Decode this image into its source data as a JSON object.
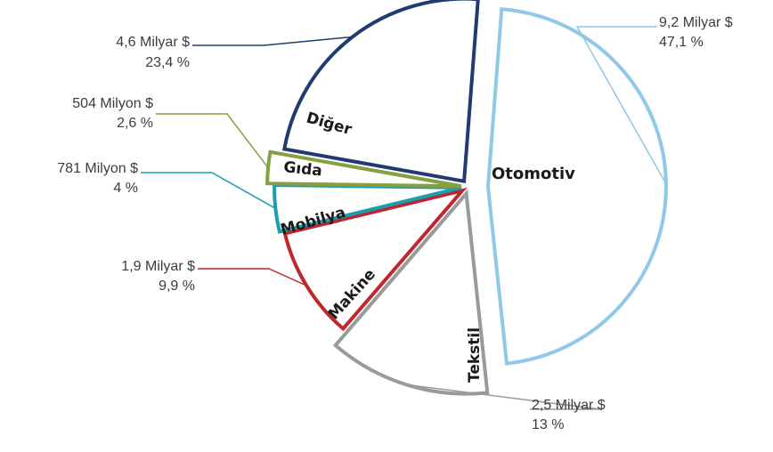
{
  "chart_data": {
    "type": "pie",
    "title": "",
    "series": [
      {
        "name": "",
        "values": [
          47.1,
          13,
          9.9,
          4,
          2.6,
          23.4
        ]
      }
    ],
    "categories": [
      "Otomotiv",
      "Tekstil",
      "Makine",
      "Mobilya",
      "Gıda",
      "Diğer"
    ],
    "slices": [
      {
        "category": "Otomotiv",
        "percent": 47.1,
        "amount_label": "9,2 Milyar $",
        "percent_label": "47,1 %",
        "color": "#8fc8e8"
      },
      {
        "category": "Tekstil",
        "percent": 13,
        "amount_label": "2,5 Milyar $",
        "percent_label": "13 %",
        "color": "#9a9a9a"
      },
      {
        "category": "Makine",
        "percent": 9.9,
        "amount_label": "1,9 Milyar $",
        "percent_label": "9,9 %",
        "color": "#c0262e"
      },
      {
        "category": "Mobilya",
        "percent": 4,
        "amount_label": "781 Milyon $",
        "percent_label": "4 %",
        "color": "#1a9fb0"
      },
      {
        "category": "Gıda",
        "percent": 2.6,
        "amount_label": "504 Milyon $",
        "percent_label": "2,6 %",
        "color": "#86a040"
      },
      {
        "category": "Diğer",
        "percent": 23.4,
        "amount_label": "4,6 Milyar $",
        "percent_label": "23,4 %",
        "color": "#233a70"
      }
    ],
    "legend": "none",
    "grid": false,
    "exploded": true
  }
}
